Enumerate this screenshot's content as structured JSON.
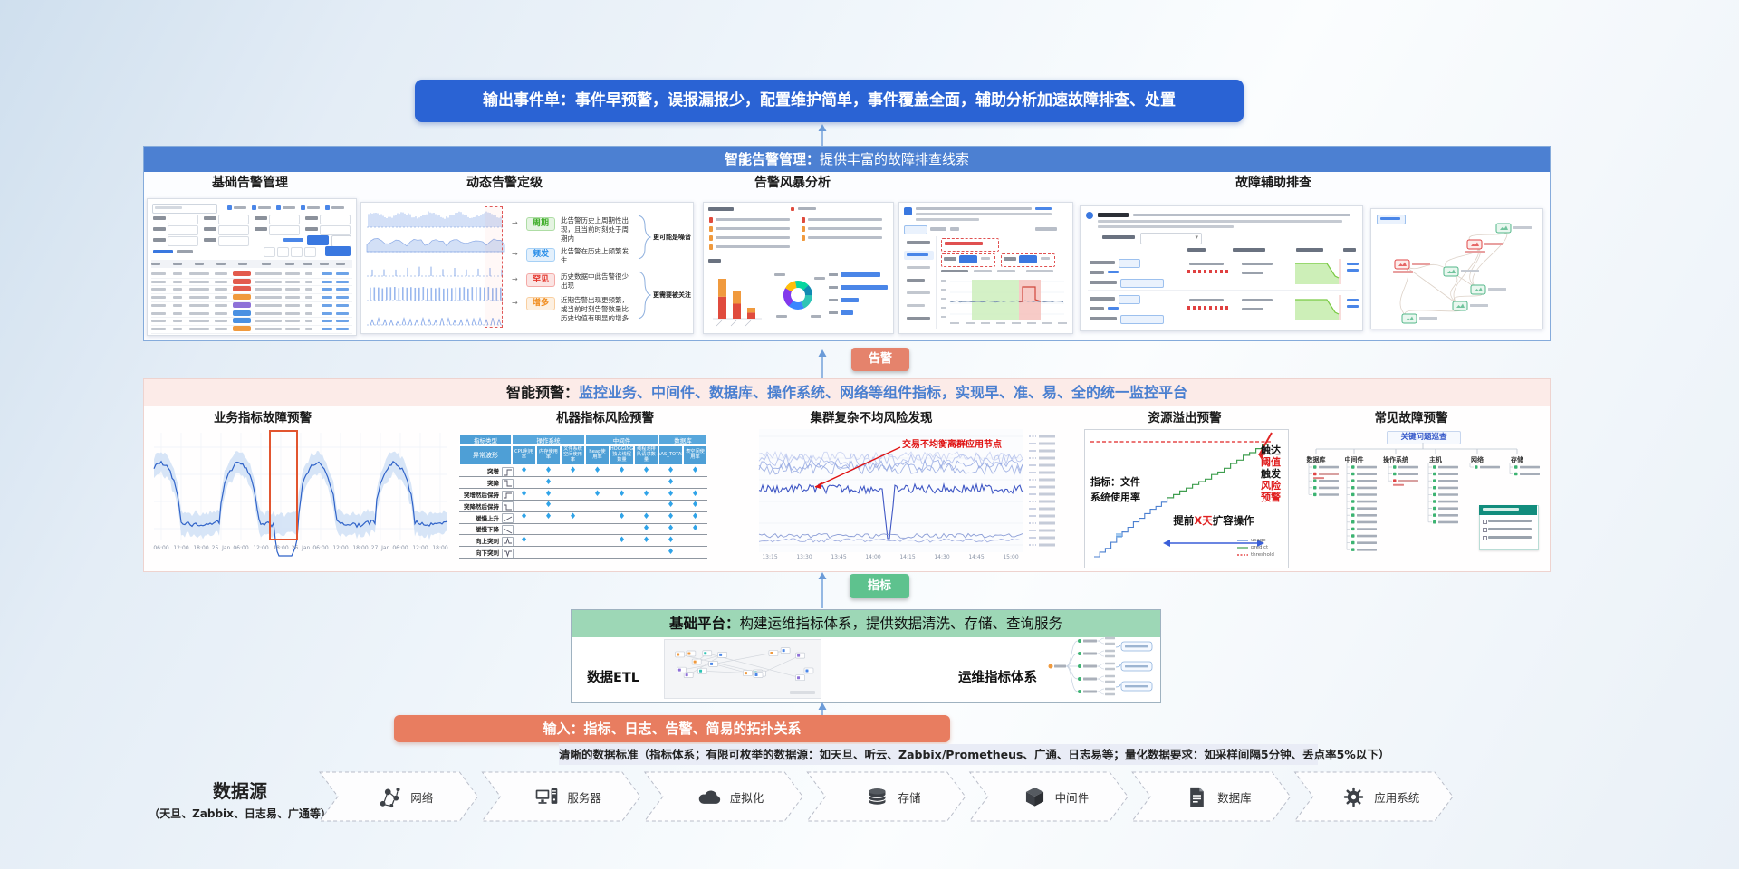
{
  "colors": {
    "banner_blue": "#2a63d4",
    "section_header_blue": "#4c80d2",
    "alert_badge": "#e5836c",
    "metric_badge": "#5ec28e",
    "warning_header_bg": "#fcebe8",
    "warning_title_blue": "#4a7fd0",
    "platform_header_bg": "#9dd7b6",
    "input_banner": "#e87d60"
  },
  "output_banner": {
    "text": "输出事件单：事件早预警，误报漏报少，配置维护简单，事件覆盖全面，辅助分析加速故障排查、处置"
  },
  "flow_badges": {
    "alert": "告警",
    "metric": "指标"
  },
  "alert_mgmt": {
    "title_bold": "智能告警管理：",
    "title_rest": "提供丰富的故障排查线索",
    "columns": [
      "基础告警管理",
      "动态告警定级",
      "告警风暴分析",
      "故障辅助排查"
    ],
    "grading": {
      "badges": [
        {
          "label": "周期",
          "color": "#3fae29",
          "desc": "此告警历史上周期性出现，且当前时刻处于周期内"
        },
        {
          "label": "频发",
          "color": "#2b8fe8",
          "desc": "此告警在历史上频繁发生"
        },
        {
          "label": "罕见",
          "color": "#e3342b",
          "desc": "历史数据中此告警很少出现"
        },
        {
          "label": "增多",
          "color": "#f08c1d",
          "desc": "近期告警出现更频繁，或当前时刻告警数量比历史均值有明显的增多"
        }
      ],
      "group_labels": [
        "更可能是噪音",
        "更需要被关注"
      ]
    }
  },
  "warning": {
    "title_bold": "智能预警：",
    "title_rest": "监控业务、中间件、数据库、操作系统、网络等组件指标，实现早、准、易、全的统一监控平台",
    "columns": [
      "业务指标故障预警",
      "机器指标风险预警",
      "集群复杂不均风险发现",
      "资源溢出预警",
      "常见故障预警"
    ],
    "biz_chart": {
      "x_ticks": [
        "06:00",
        "12:00",
        "18:00",
        "25. Jan",
        "06:00",
        "12:00",
        "18:00",
        "26. Jan",
        "06:00",
        "12:00",
        "18:00",
        "27. Jan",
        "06:00",
        "12:00",
        "18:00"
      ]
    },
    "machine_table": {
      "corner_top": "指标类型",
      "corner_bottom": "异常波形",
      "groups": [
        {
          "label": "操作系统",
          "cols": [
            "CPU利用率",
            "内存使用率",
            "文件系统空间使用率"
          ]
        },
        {
          "label": "中间件",
          "cols": [
            "heap使用率",
            "HOGGING独占线程数量",
            "线程池排队请求数量"
          ]
        },
        {
          "label": "数据库",
          "cols": [
            "AAS_TOTAL",
            "表空间使用率"
          ]
        }
      ],
      "rows": [
        {
          "label": "突增",
          "wave": "step-up",
          "checks": [
            1,
            1,
            1,
            1,
            1,
            1,
            1,
            1
          ]
        },
        {
          "label": "突降",
          "wave": "step-down",
          "checks": [
            0,
            1,
            0,
            0,
            0,
            0,
            1,
            0
          ]
        },
        {
          "label": "突增然后保持",
          "wave": "up-hold",
          "checks": [
            1,
            1,
            0,
            1,
            1,
            1,
            1,
            1
          ]
        },
        {
          "label": "突降然后保持",
          "wave": "down-hold",
          "checks": [
            0,
            1,
            0,
            0,
            0,
            0,
            1,
            1
          ]
        },
        {
          "label": "缓慢上升",
          "wave": "slow-up",
          "checks": [
            1,
            1,
            1,
            0,
            1,
            1,
            1,
            1
          ]
        },
        {
          "label": "缓慢下降",
          "wave": "slow-down",
          "checks": [
            0,
            0,
            0,
            0,
            0,
            1,
            1,
            1
          ]
        },
        {
          "label": "向上突刺",
          "wave": "spike-up",
          "checks": [
            1,
            0,
            0,
            0,
            1,
            1,
            1,
            0
          ]
        },
        {
          "label": "向下突刺",
          "wave": "spike-down",
          "checks": [
            0,
            0,
            0,
            0,
            0,
            0,
            1,
            0
          ]
        }
      ]
    },
    "cluster_chart": {
      "annotation": "交易不均衡离群应用节点",
      "x_ticks": [
        "13:15",
        "13:30",
        "13:45",
        "14:00",
        "14:15",
        "14:30",
        "14:45",
        "15:00"
      ]
    },
    "resource_chart": {
      "metric_label": "指标：文件系统使用率",
      "threshold_words": [
        [
          "触达",
          0
        ],
        [
          "阈值",
          1
        ],
        [
          "触发",
          0
        ],
        [
          "风险",
          1
        ],
        [
          "预警",
          1
        ]
      ],
      "action_words": [
        [
          "提前",
          0
        ],
        [
          "X",
          1
        ],
        [
          "天",
          1
        ],
        [
          "扩容",
          0
        ],
        [
          "操作",
          0
        ]
      ],
      "legend": [
        "usage",
        "predict",
        "threshold"
      ]
    },
    "tree": {
      "root": "关键问题巡查",
      "branches": [
        {
          "label": "数据库",
          "leaves": 5,
          "red": [
            1
          ]
        },
        {
          "label": "中间件",
          "leaves": 13,
          "red": []
        },
        {
          "label": "操作系统",
          "leaves": 3,
          "red": [
            2
          ]
        },
        {
          "label": "主机",
          "leaves": 9,
          "red": []
        },
        {
          "label": "网络",
          "leaves": 1,
          "red": []
        },
        {
          "label": "存储",
          "leaves": 2,
          "red": []
        }
      ]
    }
  },
  "platform": {
    "title_bold": "基础平台：",
    "title_rest": "构建运维指标体系，提供数据清洗、存储、查询服务",
    "etl_label": "数据ETL",
    "index_label": "运维指标体系"
  },
  "input_banner": {
    "text": "输入：指标、日志、告警、简易的拓扑关系"
  },
  "standards": {
    "text": "清晰的数据标准（指标体系；有限可枚举的数据源：如天旦、听云、Zabbix/Prometheus、广通、日志易等；量化数据要求：如采样间隔5分钟、丢点率5%以下）"
  },
  "datasources": {
    "title": "数据源",
    "subtitle": "（天旦、Zabbix、日志易、广通等）",
    "items": [
      {
        "icon": "network-icon",
        "label": "网络"
      },
      {
        "icon": "server-icon",
        "label": "服务器"
      },
      {
        "icon": "virtualization-icon",
        "label": "虚拟化"
      },
      {
        "icon": "storage-icon",
        "label": "存储"
      },
      {
        "icon": "middleware-icon",
        "label": "中间件"
      },
      {
        "icon": "database-icon",
        "label": "数据库"
      },
      {
        "icon": "application-icon",
        "label": "应用系统"
      }
    ]
  }
}
